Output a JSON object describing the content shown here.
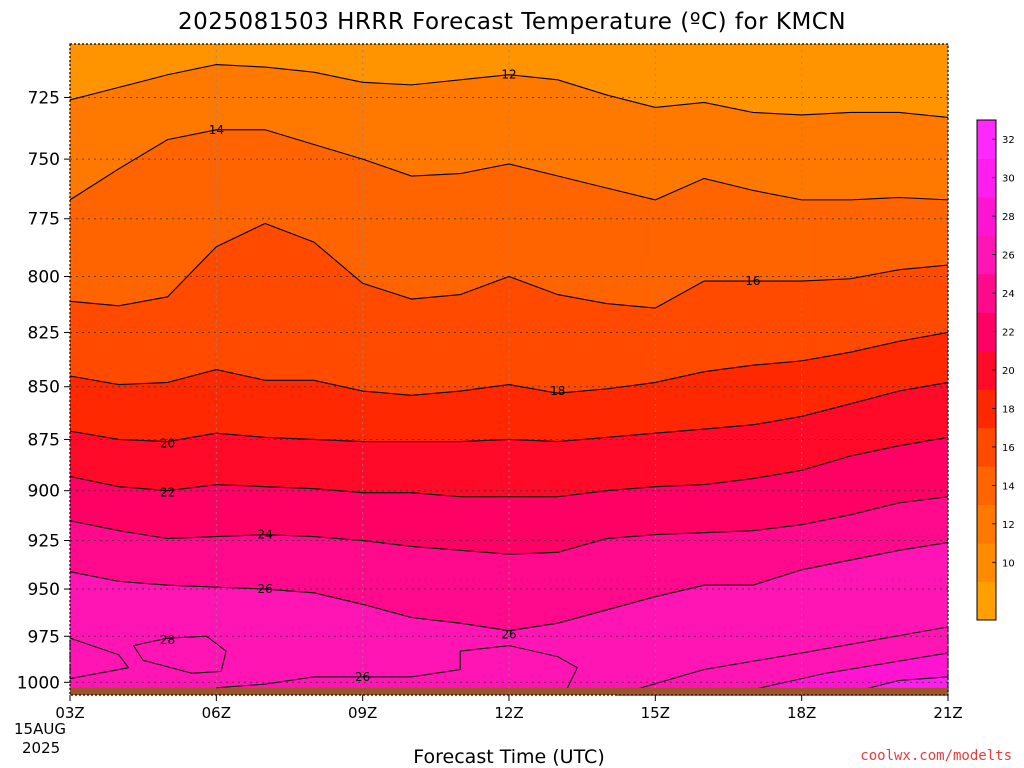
{
  "chart_data": {
    "type": "contour",
    "title": "2025081503 HRRR Forecast Temperature (ºC) for KMCN",
    "xlabel": "Forecast Time (UTC)",
    "ylabel": "",
    "credit": "coolwx.com/modelts",
    "x_ticks": [
      "03Z",
      "06Z",
      "09Z",
      "12Z",
      "15Z",
      "18Z",
      "21Z"
    ],
    "x_tick_hours": [
      3,
      6,
      9,
      12,
      15,
      18,
      21
    ],
    "x_date_line1": "15AUG",
    "x_date_line2": "2025",
    "xlim": [
      3,
      21
    ],
    "y_ticks": [
      725,
      750,
      775,
      800,
      825,
      850,
      875,
      900,
      925,
      950,
      975,
      1000
    ],
    "ylim": [
      1007,
      704
    ],
    "y_scale": "log-pressure",
    "grid": "dotted",
    "surface_color": "#a0522d",
    "surface_pressure": 1003,
    "colorbar": {
      "ticks": [
        10,
        12,
        14,
        16,
        18,
        20,
        22,
        24,
        26,
        28,
        30,
        32
      ],
      "levels": [
        8,
        10,
        12,
        14,
        16,
        18,
        20,
        22,
        24,
        26,
        28,
        30,
        32,
        34
      ],
      "colors": [
        "#ff9f00",
        "#ff8c00",
        "#ff7800",
        "#ff6400",
        "#ff4a00",
        "#ff2800",
        "#ff0a28",
        "#ff0064",
        "#ff0a8c",
        "#ff14b4",
        "#ff14d2",
        "#ff1ef0",
        "#ff28ff"
      ]
    },
    "background_band_color": "#ff9400",
    "hours": [
      3,
      4,
      5,
      6,
      7,
      8,
      9,
      10,
      11,
      12,
      13,
      14,
      15,
      16,
      17,
      18,
      19,
      20,
      21
    ],
    "isotherms": [
      {
        "temp": 12,
        "label": "12",
        "label_at": [
          12,
          716
        ],
        "pressure": [
          726,
          721,
          716,
          712,
          713,
          715,
          719,
          720,
          718,
          716,
          718,
          724,
          729,
          727,
          731,
          732,
          731,
          731,
          733
        ]
      },
      {
        "temp": 14,
        "label": "14",
        "label_at": [
          6,
          738
        ],
        "pressure": [
          767,
          754,
          742,
          738,
          738,
          744,
          750,
          757,
          756,
          752,
          757,
          762,
          767,
          758,
          763,
          767,
          767,
          766,
          767
        ]
      },
      {
        "temp": 16,
        "label": "16",
        "label_at": [
          17,
          802
        ],
        "pressure": [
          811,
          813,
          809,
          787,
          777,
          785,
          803,
          810,
          808,
          800,
          808,
          812,
          814,
          802,
          802,
          802,
          801,
          797,
          795
        ]
      },
      {
        "temp": 18,
        "label": "18",
        "label_at": [
          13,
          852
        ],
        "pressure": [
          845,
          849,
          848,
          842,
          847,
          847,
          852,
          854,
          852,
          849,
          853,
          851,
          848,
          843,
          840,
          838,
          834,
          829,
          825
        ]
      },
      {
        "temp": 20,
        "label": "20",
        "label_at": [
          5,
          877
        ],
        "pressure": [
          871,
          875,
          876,
          872,
          874,
          875,
          876,
          876,
          876,
          875,
          876,
          874,
          872,
          870,
          868,
          864,
          858,
          852,
          848
        ]
      },
      {
        "temp": 22,
        "label": "22",
        "label_at": [
          5,
          901
        ],
        "pressure": [
          893,
          898,
          900,
          897,
          898,
          899,
          901,
          901,
          903,
          903,
          903,
          900,
          898,
          897,
          894,
          890,
          883,
          878,
          874
        ]
      },
      {
        "temp": 24,
        "label": "24",
        "label_at": [
          7,
          922
        ],
        "pressure": [
          915,
          920,
          924,
          923,
          922,
          923,
          925,
          928,
          930,
          932,
          931,
          924,
          922,
          921,
          920,
          917,
          912,
          906,
          903
        ]
      },
      {
        "temp": 26,
        "label": "26",
        "label_at": [
          7,
          950
        ],
        "pressure": [
          941,
          946,
          948,
          949,
          950,
          952,
          958,
          965,
          968,
          972,
          968,
          961,
          954,
          948,
          948,
          940,
          935,
          930,
          926
        ]
      }
    ],
    "contour_labels_extra": [
      {
        "text": "28",
        "hour": 5,
        "pressure": 977
      },
      {
        "text": "26",
        "hour": 12,
        "pressure": 974
      },
      {
        "text": "26",
        "hour": 9,
        "pressure": 997
      }
    ]
  }
}
